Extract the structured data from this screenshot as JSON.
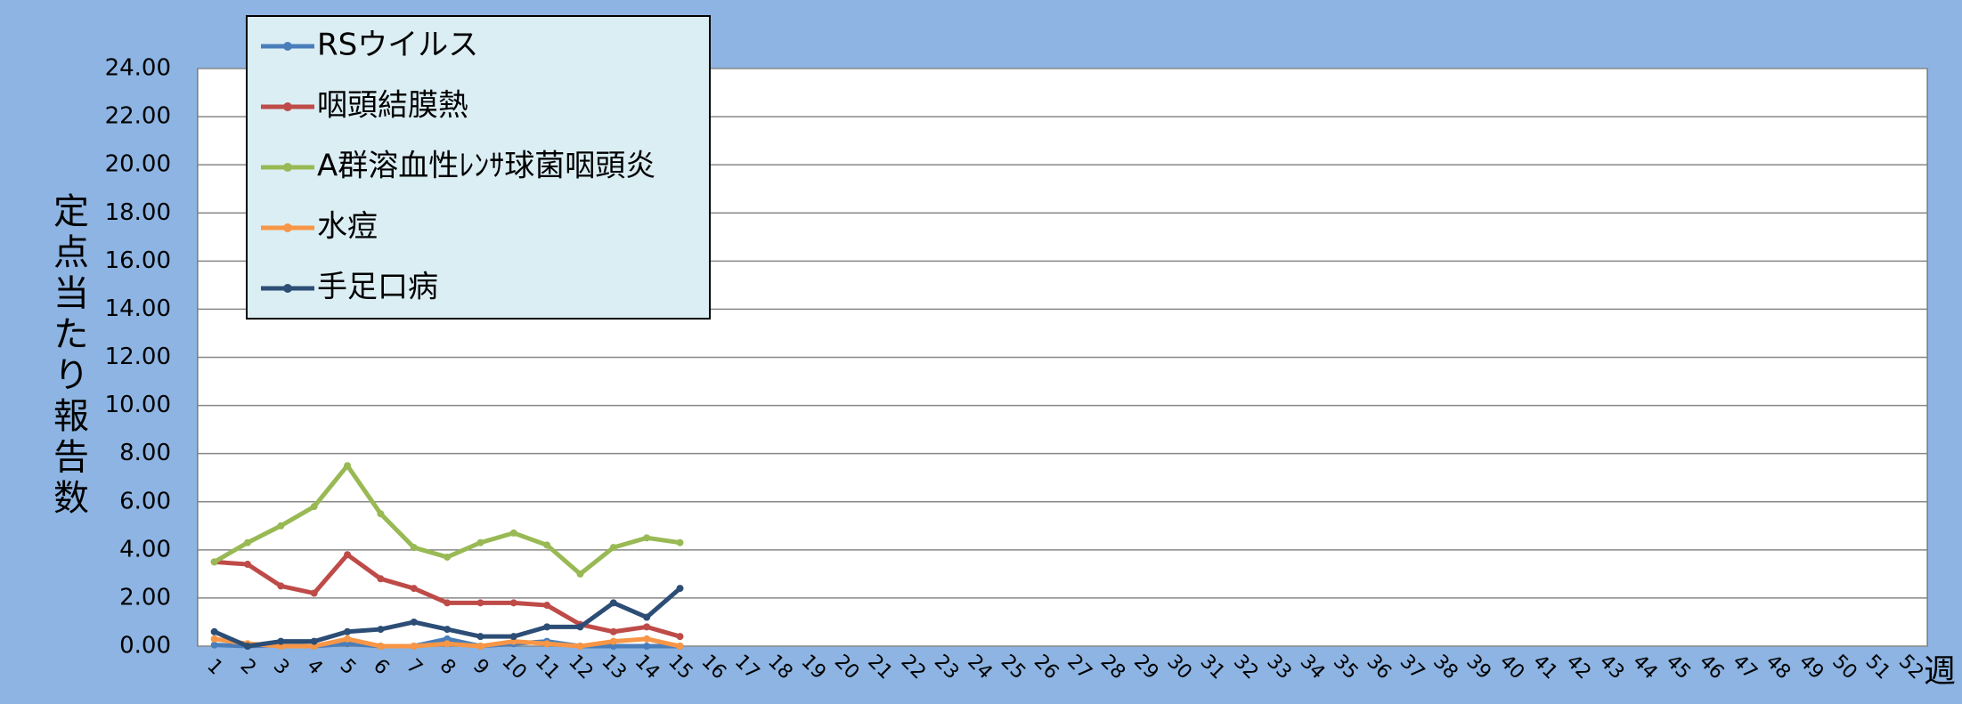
{
  "chart_data": {
    "type": "line",
    "y_label": "定点当たり報告数",
    "x_label": "週",
    "categories": [
      "1",
      "2",
      "3",
      "4",
      "5",
      "6",
      "7",
      "8",
      "9",
      "10",
      "11",
      "12",
      "13",
      "14",
      "15",
      "16",
      "17",
      "18",
      "19",
      "20",
      "21",
      "22",
      "23",
      "24",
      "25",
      "26",
      "27",
      "28",
      "29",
      "30",
      "31",
      "32",
      "33",
      "34",
      "35",
      "36",
      "37",
      "38",
      "39",
      "40",
      "41",
      "42",
      "43",
      "44",
      "45",
      "46",
      "47",
      "48",
      "49",
      "50",
      "51",
      "52"
    ],
    "series": [
      {
        "name": "RSウイルス",
        "color": "#4a7ebb",
        "values": [
          0.05,
          0,
          0.05,
          0,
          0.1,
          0,
          0,
          0.3,
          0,
          0.1,
          0.2,
          0,
          0,
          0,
          0,
          null,
          null,
          null,
          null,
          null,
          null,
          null,
          null,
          null,
          null,
          null,
          null,
          null,
          null,
          null,
          null,
          null,
          null,
          null,
          null,
          null,
          null,
          null,
          null,
          null,
          null,
          null,
          null,
          null,
          null,
          null,
          null,
          null,
          null,
          null,
          null,
          null
        ]
      },
      {
        "name": "咽頭結膜熱",
        "color": "#be4b48",
        "values": [
          3.5,
          3.4,
          2.5,
          2.2,
          3.8,
          2.8,
          2.4,
          1.8,
          1.8,
          1.8,
          1.7,
          0.9,
          0.6,
          0.8,
          0.4,
          null,
          null,
          null,
          null,
          null,
          null,
          null,
          null,
          null,
          null,
          null,
          null,
          null,
          null,
          null,
          null,
          null,
          null,
          null,
          null,
          null,
          null,
          null,
          null,
          null,
          null,
          null,
          null,
          null,
          null,
          null,
          null,
          null,
          null,
          null,
          null,
          null
        ]
      },
      {
        "name": "A群溶血性ﾚﾝｻ球菌咽頭炎",
        "color": "#98b954",
        "values": [
          3.5,
          4.3,
          5.0,
          5.8,
          7.5,
          5.5,
          4.1,
          3.7,
          4.3,
          4.7,
          4.2,
          3.0,
          4.1,
          4.5,
          4.3,
          null,
          null,
          null,
          null,
          null,
          null,
          null,
          null,
          null,
          null,
          null,
          null,
          null,
          null,
          null,
          null,
          null,
          null,
          null,
          null,
          null,
          null,
          null,
          null,
          null,
          null,
          null,
          null,
          null,
          null,
          null,
          null,
          null,
          null,
          null,
          null,
          null
        ]
      },
      {
        "name": "水痘",
        "color": "#f79646",
        "values": [
          0.3,
          0.1,
          0,
          0,
          0.3,
          0,
          0,
          0.1,
          0,
          0.2,
          0.1,
          0,
          0.2,
          0.3,
          0,
          null,
          null,
          null,
          null,
          null,
          null,
          null,
          null,
          null,
          null,
          null,
          null,
          null,
          null,
          null,
          null,
          null,
          null,
          null,
          null,
          null,
          null,
          null,
          null,
          null,
          null,
          null,
          null,
          null,
          null,
          null,
          null,
          null,
          null,
          null,
          null,
          null
        ]
      },
      {
        "name": "手足口病",
        "color": "#2c4d75",
        "values": [
          0.6,
          0,
          0.2,
          0.2,
          0.6,
          0.7,
          1.0,
          0.7,
          0.4,
          0.4,
          0.8,
          0.8,
          1.8,
          1.2,
          2.4,
          null,
          null,
          null,
          null,
          null,
          null,
          null,
          null,
          null,
          null,
          null,
          null,
          null,
          null,
          null,
          null,
          null,
          null,
          null,
          null,
          null,
          null,
          null,
          null,
          null,
          null,
          null,
          null,
          null,
          null,
          null,
          null,
          null,
          null,
          null,
          null,
          null
        ]
      }
    ],
    "ylim": [
      0,
      24
    ],
    "yticks": [
      {
        "value": 0,
        "label": "0.00"
      },
      {
        "value": 2,
        "label": "2.00"
      },
      {
        "value": 4,
        "label": "4.00"
      },
      {
        "value": 6,
        "label": "6.00"
      },
      {
        "value": 8,
        "label": "8.00"
      },
      {
        "value": 10,
        "label": "10.00"
      },
      {
        "value": 12,
        "label": "12.00"
      },
      {
        "value": 14,
        "label": "14.00"
      },
      {
        "value": 16,
        "label": "16.00"
      },
      {
        "value": 18,
        "label": "18.00"
      },
      {
        "value": 20,
        "label": "20.00"
      },
      {
        "value": 22,
        "label": "22.00"
      },
      {
        "value": 24,
        "label": "24.00"
      }
    ],
    "grid": true,
    "legend": "upper-left"
  }
}
